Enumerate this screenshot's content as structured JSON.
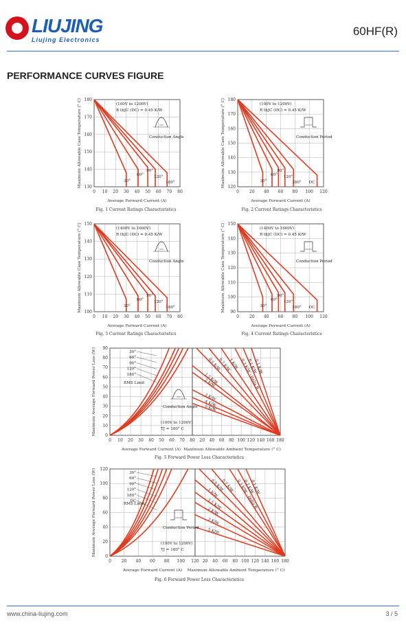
{
  "header": {
    "logo_word": "LIUJING",
    "logo_sub": "Liujing Electronics",
    "part_number": "60HF(R)",
    "accent": "#1c5fb5",
    "brand_red": "#d4121b"
  },
  "section_title": "PERFORMANCE CURVES FIGURE",
  "footer": {
    "website": "www.china-liujing.com",
    "page": "3 / 5"
  },
  "curve_color": "#e03a1e",
  "chart_data": [
    {
      "type": "line",
      "id": "fig1",
      "caption": "Fig. 1  Current Ratings Characteristics",
      "xlabel": "Average Forward Current  (A)",
      "ylabel": "Maximum Allowable Case Temperature (° C)",
      "xlim": [
        0,
        80
      ],
      "ylim": [
        130,
        180
      ],
      "xticks": [
        0,
        10,
        20,
        30,
        40,
        50,
        60,
        70,
        80
      ],
      "yticks": [
        130,
        140,
        150,
        160,
        170,
        180
      ],
      "notes": [
        "(100V to 1200V)",
        "R thJC   (DC) = 0.45 K/W",
        "Conduction Angle"
      ],
      "series": [
        {
          "name": "30°",
          "x": [
            0,
            30,
            30
          ],
          "y": [
            180,
            138,
            130
          ]
        },
        {
          "name": "60°",
          "x": [
            0,
            41,
            41
          ],
          "y": [
            180,
            140,
            130
          ]
        },
        {
          "name": "90°",
          "x": [
            0,
            50,
            50
          ],
          "y": [
            180,
            141,
            130
          ]
        },
        {
          "name": "120°",
          "x": [
            0,
            57,
            57
          ],
          "y": [
            180,
            140,
            130
          ]
        },
        {
          "name": "180°",
          "x": [
            0,
            68,
            68
          ],
          "y": [
            180,
            138,
            130
          ]
        }
      ]
    },
    {
      "type": "line",
      "id": "fig2",
      "caption": "Fig. 2  Current Ratings Characteristics",
      "xlabel": "Average Forward Current  (A)",
      "ylabel": "Maximum Allowable Case Temperature (° C)",
      "xlim": [
        0,
        120
      ],
      "ylim": [
        120,
        180
      ],
      "xticks": [
        0,
        20,
        40,
        60,
        80,
        100,
        120
      ],
      "yticks": [
        120,
        130,
        140,
        150,
        160,
        170,
        180
      ],
      "notes": [
        "(100V to 1200V)",
        "R thJC   (DC) = 0.45 K/W",
        "Conduction Period"
      ],
      "series": [
        {
          "name": "30°",
          "x": [
            0,
            35,
            35
          ],
          "y": [
            180,
            130,
            120
          ]
        },
        {
          "name": "60°",
          "x": [
            0,
            48,
            48
          ],
          "y": [
            180,
            132,
            120
          ]
        },
        {
          "name": "90°",
          "x": [
            0,
            57,
            57
          ],
          "y": [
            180,
            133,
            120
          ]
        },
        {
          "name": "120°",
          "x": [
            0,
            66,
            66
          ],
          "y": [
            180,
            133,
            120
          ]
        },
        {
          "name": "180°",
          "x": [
            0,
            78,
            78
          ],
          "y": [
            180,
            132,
            120
          ]
        },
        {
          "name": "DC",
          "x": [
            0,
            111,
            111
          ],
          "y": [
            180,
            128,
            120
          ]
        }
      ]
    },
    {
      "type": "line",
      "id": "fig3",
      "caption": "Fig. 3   Current Ratings Characteristics",
      "xlabel": "Average Forward Current  (A)",
      "ylabel": "Maximum Allowable Case Temperature (° C)",
      "xlim": [
        0,
        80
      ],
      "ylim": [
        100,
        150
      ],
      "xticks": [
        0,
        10,
        20,
        30,
        40,
        50,
        60,
        70,
        80
      ],
      "yticks": [
        100,
        110,
        120,
        130,
        140,
        150
      ],
      "notes": [
        "(1400V to 1600V)",
        "R thJC   (DC) = 0.45 K/W",
        "Conduction Angle"
      ],
      "series": [
        {
          "name": "30°",
          "x": [
            0,
            30,
            30
          ],
          "y": [
            150,
            107,
            100
          ]
        },
        {
          "name": "60°",
          "x": [
            0,
            41,
            41
          ],
          "y": [
            150,
            109,
            100
          ]
        },
        {
          "name": "90°",
          "x": [
            0,
            50,
            50
          ],
          "y": [
            150,
            110,
            100
          ]
        },
        {
          "name": "120°",
          "x": [
            0,
            57,
            57
          ],
          "y": [
            150,
            109,
            100
          ]
        },
        {
          "name": "180°",
          "x": [
            0,
            68,
            68
          ],
          "y": [
            150,
            108,
            100
          ]
        }
      ]
    },
    {
      "type": "line",
      "id": "fig4",
      "caption": "Fig. 4   Current Ratings Characteristics",
      "xlabel": "Average Forward Current  (A)",
      "ylabel": "Maximum Allowable Case Temperature (° C)",
      "xlim": [
        0,
        120
      ],
      "ylim": [
        90,
        150
      ],
      "xticks": [
        0,
        20,
        40,
        60,
        80,
        100,
        120
      ],
      "yticks": [
        90,
        100,
        110,
        120,
        130,
        140,
        150
      ],
      "notes": [
        "(1400V to 1600V)",
        "R thJC   (DC) = 0.45 K/W",
        "Conduction Period"
      ],
      "series": [
        {
          "name": "30°",
          "x": [
            0,
            35,
            35
          ],
          "y": [
            150,
            100,
            90
          ]
        },
        {
          "name": "60°",
          "x": [
            0,
            48,
            48
          ],
          "y": [
            150,
            102,
            90
          ]
        },
        {
          "name": "90°",
          "x": [
            0,
            57,
            57
          ],
          "y": [
            150,
            103,
            90
          ]
        },
        {
          "name": "120°",
          "x": [
            0,
            66,
            66
          ],
          "y": [
            150,
            103,
            90
          ]
        },
        {
          "name": "180°",
          "x": [
            0,
            78,
            78
          ],
          "y": [
            150,
            102,
            90
          ]
        },
        {
          "name": "DC",
          "x": [
            0,
            111,
            111
          ],
          "y": [
            150,
            98,
            90
          ]
        }
      ]
    },
    {
      "type": "line",
      "id": "fig5",
      "caption": "Fig. 5   Forward Power Loss Characteristics",
      "xlabel": "Average Forward Current  (A)",
      "xlabel_right": "Maximum Allowable Ambient Temperature (° C)",
      "ylabel": "Maximum Average Forward Power Loss (W)",
      "xlim": [
        0,
        80
      ],
      "xlim_right": [
        180,
        0
      ],
      "ylim": [
        0,
        90
      ],
      "xticks": [
        0,
        10,
        20,
        30,
        40,
        50,
        60,
        70,
        80
      ],
      "xticks_right": [
        20,
        40,
        60,
        80,
        100,
        120,
        140,
        160,
        180
      ],
      "yticks": [
        0,
        10,
        20,
        30,
        40,
        50,
        60,
        70,
        80,
        90
      ],
      "notes": [
        "RMS Limit",
        "Conduction Angle",
        "(100V to 1200V)",
        "TJ = 180° C"
      ],
      "loss_series": [
        {
          "name": "30°",
          "x": [
            0,
            57.5
          ],
          "y": [
            0,
            90
          ]
        },
        {
          "name": "60°",
          "x": [
            0,
            63.5
          ],
          "y": [
            0,
            90
          ]
        },
        {
          "name": "90°",
          "x": [
            0,
            67
          ],
          "y": [
            0,
            90
          ]
        },
        {
          "name": "120°",
          "x": [
            0,
            71
          ],
          "y": [
            0,
            90
          ]
        },
        {
          "name": "180°",
          "x": [
            0,
            76
          ],
          "y": [
            0,
            90
          ]
        }
      ],
      "thermal_resistance": [
        {
          "name": "0.5 K/W",
          "y_at_max": 90
        },
        {
          "name": "0.7 K/W",
          "y_at_max": 90
        },
        {
          "name": "1 K/W",
          "y_at_max": 90
        },
        {
          "name": "1.5 K/W",
          "y_at_max": 72
        },
        {
          "name": "2 K/W",
          "y_at_max": 65
        },
        {
          "name": "3 K/W",
          "y_at_max": 47
        },
        {
          "name": "4 K/W",
          "y_at_max": 39
        },
        {
          "name": "5 K/W",
          "y_at_max": 33
        },
        {
          "name": "0.3 K/W - Delta R",
          "y_at_max": 90
        },
        {
          "name": "0.2 K/W",
          "y_at_max": 90
        },
        {
          "name": "0.1 K/W",
          "y_at_max": 90
        }
      ]
    },
    {
      "type": "line",
      "id": "fig6",
      "caption": "Fig. 6   Forward Power Loss Characteristics",
      "xlabel": "Average Forward Current  (A)",
      "xlabel_right": "Maximum Allowable Ambient Temperature (° C)",
      "ylabel": "Maximum Average Forward Power Loss (W)",
      "xlim": [
        0,
        120
      ],
      "xlim_right": [
        180,
        0
      ],
      "ylim": [
        0,
        120
      ],
      "xticks": [
        0,
        20,
        40,
        60,
        80,
        100,
        120
      ],
      "xticks_right": [
        20,
        40,
        60,
        80,
        100,
        120,
        140,
        160,
        180
      ],
      "yticks": [
        0,
        20,
        40,
        60,
        80,
        100,
        120
      ],
      "notes": [
        "RMS Limit",
        "Conduction Period",
        "(100V to 1200V)",
        "TJ = 180° C"
      ],
      "loss_series": [
        {
          "name": "30°",
          "x": [
            0,
            62
          ],
          "y": [
            0,
            120
          ]
        },
        {
          "name": "60°",
          "x": [
            0,
            68
          ],
          "y": [
            0,
            120
          ]
        },
        {
          "name": "90°",
          "x": [
            0,
            74
          ],
          "y": [
            0,
            120
          ]
        },
        {
          "name": "120°",
          "x": [
            0,
            80
          ],
          "y": [
            0,
            120
          ]
        },
        {
          "name": "180°",
          "x": [
            0,
            87
          ],
          "y": [
            0,
            120
          ]
        },
        {
          "name": "DC",
          "x": [
            0,
            110
          ],
          "y": [
            0,
            120
          ]
        }
      ],
      "thermal_resistance": [
        {
          "name": "0.5 K/W",
          "y_at_max": 120
        },
        {
          "name": "0.7 K/W",
          "y_at_max": 120
        },
        {
          "name": "1 K/W",
          "y_at_max": 105
        },
        {
          "name": "1.5 K/W",
          "y_at_max": 88
        },
        {
          "name": "2 K/W",
          "y_at_max": 74
        },
        {
          "name": "3 K/W",
          "y_at_max": 57
        },
        {
          "name": "5 K/W",
          "y_at_max": 40
        },
        {
          "name": "0.3 K/W - Delta R",
          "y_at_max": 120
        },
        {
          "name": "0.2 K/W",
          "y_at_max": 120
        },
        {
          "name": "0.1 K/W",
          "y_at_max": 120
        }
      ]
    }
  ]
}
